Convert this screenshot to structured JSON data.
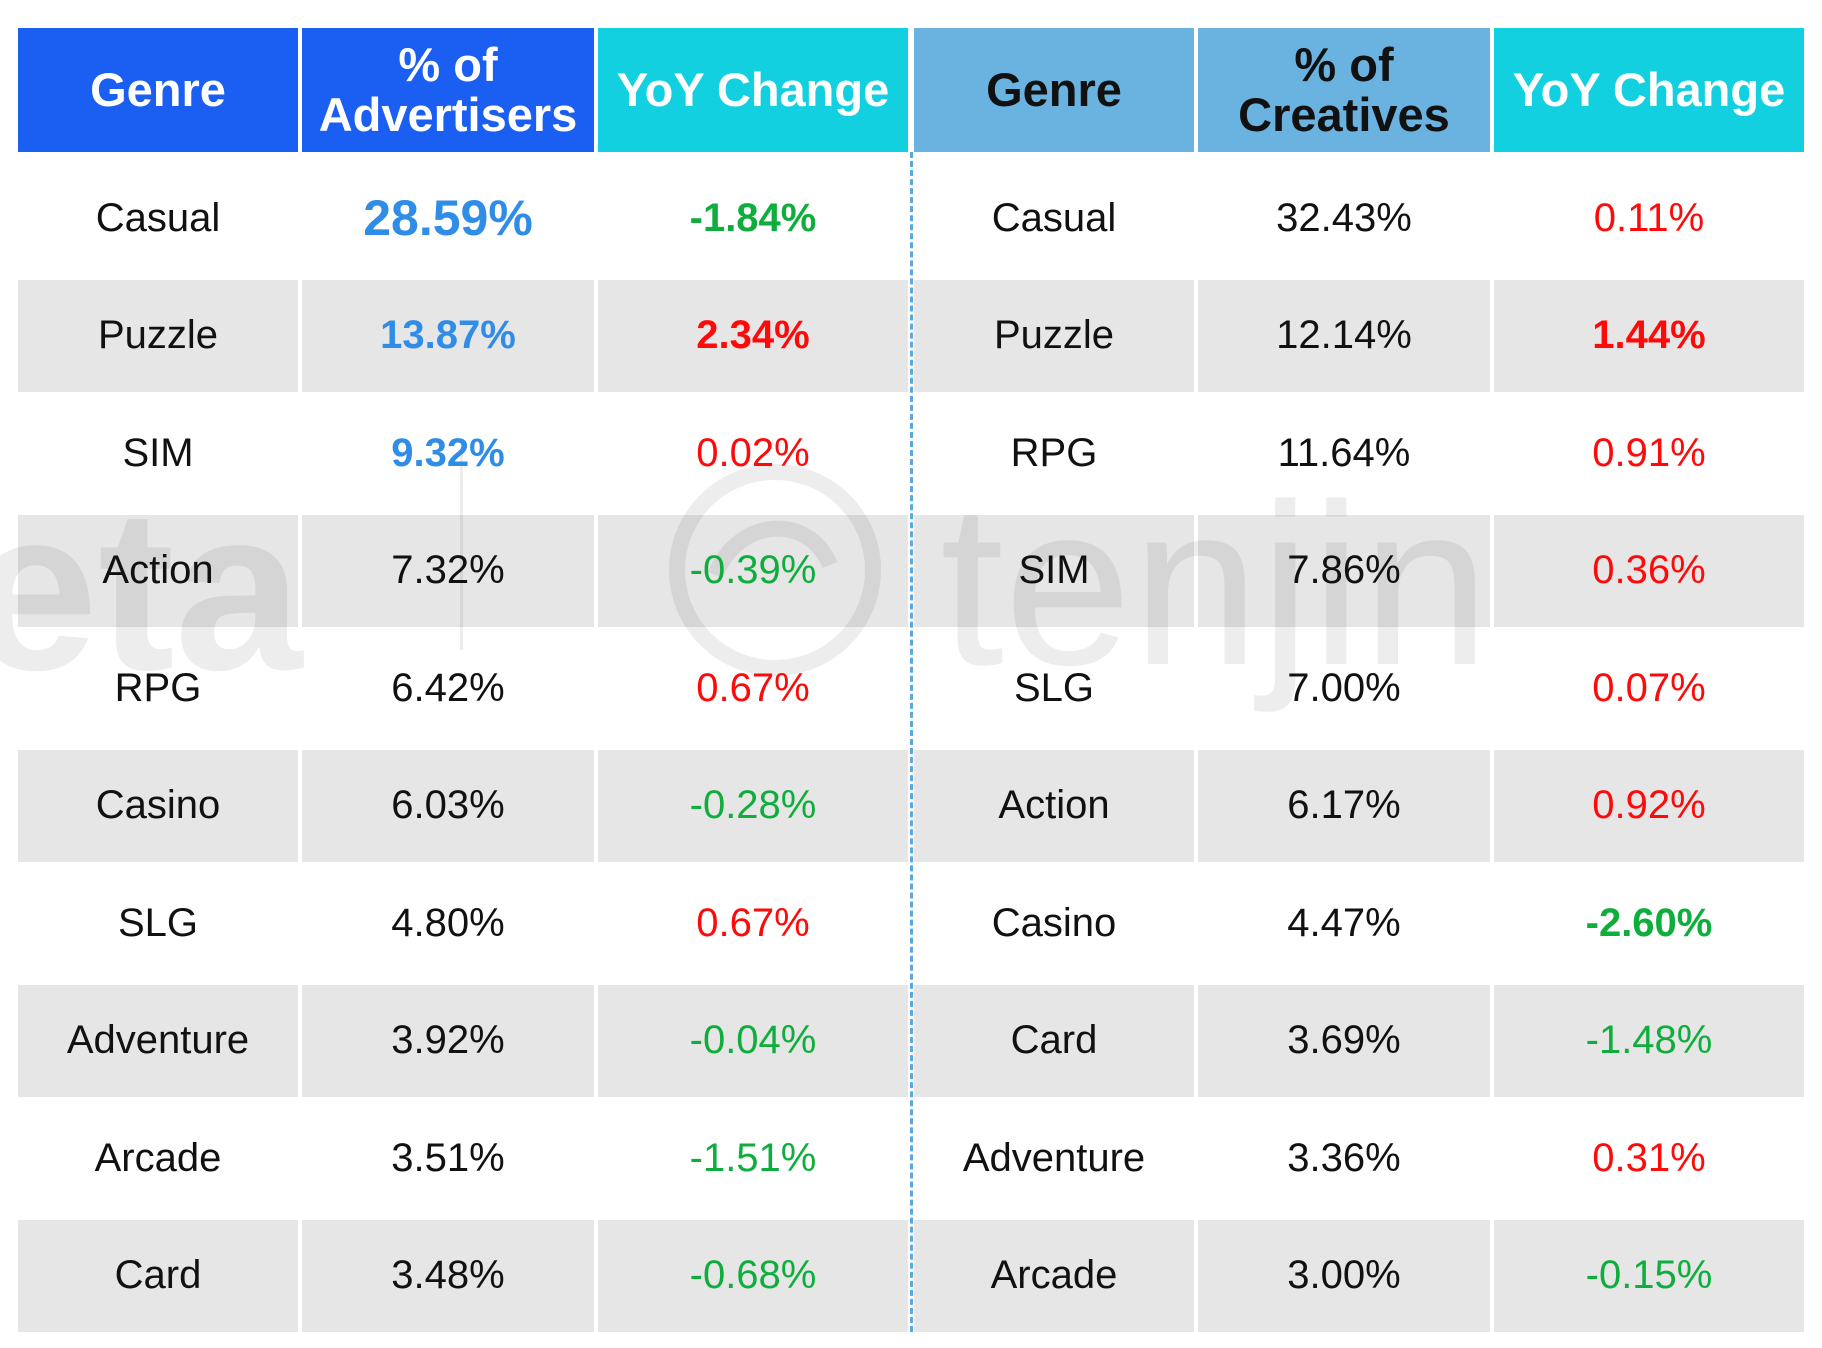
{
  "chart_data": {
    "type": "table",
    "tables": [
      {
        "headers": [
          "Genre",
          "% of Advertisers",
          "YoY Change"
        ],
        "rows": [
          {
            "genre": "Casual",
            "share": "28.59%",
            "yoy": "-1.84%"
          },
          {
            "genre": "Puzzle",
            "share": "13.87%",
            "yoy": "2.34%"
          },
          {
            "genre": "SIM",
            "share": "9.32%",
            "yoy": "0.02%"
          },
          {
            "genre": "Action",
            "share": "7.32%",
            "yoy": "-0.39%"
          },
          {
            "genre": "RPG",
            "share": "6.42%",
            "yoy": "0.67%"
          },
          {
            "genre": "Casino",
            "share": "6.03%",
            "yoy": "-0.28%"
          },
          {
            "genre": "SLG",
            "share": "4.80%",
            "yoy": "0.67%"
          },
          {
            "genre": "Adventure",
            "share": "3.92%",
            "yoy": "-0.04%"
          },
          {
            "genre": "Arcade",
            "share": "3.51%",
            "yoy": "-1.51%"
          },
          {
            "genre": "Card",
            "share": "3.48%",
            "yoy": "-0.68%"
          }
        ]
      },
      {
        "headers": [
          "Genre",
          "% of Creatives",
          "YoY Change"
        ],
        "rows": [
          {
            "genre": "Casual",
            "share": "32.43%",
            "yoy": "0.11%"
          },
          {
            "genre": "Puzzle",
            "share": "12.14%",
            "yoy": "1.44%"
          },
          {
            "genre": "RPG",
            "share": "11.64%",
            "yoy": "0.91%"
          },
          {
            "genre": "SIM",
            "share": "7.86%",
            "yoy": "0.36%"
          },
          {
            "genre": "SLG",
            "share": "7.00%",
            "yoy": "0.07%"
          },
          {
            "genre": "Action",
            "share": "6.17%",
            "yoy": "0.92%"
          },
          {
            "genre": "Casino",
            "share": "4.47%",
            "yoy": "-2.60%"
          },
          {
            "genre": "Card",
            "share": "3.69%",
            "yoy": "-1.48%"
          },
          {
            "genre": "Adventure",
            "share": "3.36%",
            "yoy": "0.31%"
          },
          {
            "genre": "Arcade",
            "share": "3.00%",
            "yoy": "-0.15%"
          }
        ]
      }
    ]
  },
  "watermark": {
    "left": "eta",
    "right": "tenjin"
  },
  "colors": {
    "header_genre_left": "#1a5ef2",
    "header_genre_right": "#6ab3e0",
    "header_share_left": "#1a5ef2",
    "header_share_right": "#6ab3e0",
    "header_yoy": "#12d0df",
    "positive": "#ff0a0a",
    "negative": "#0fae3c",
    "highlight": "#2f8de8",
    "row_shade": "#e6e6e6"
  }
}
